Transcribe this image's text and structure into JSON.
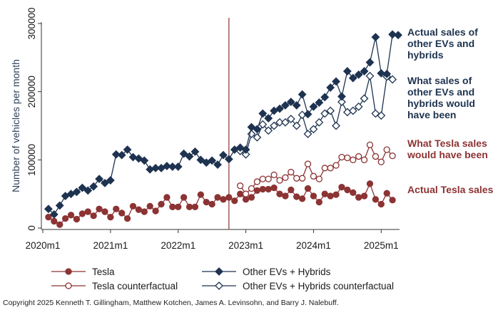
{
  "chart_data": {
    "type": "line",
    "ylabel": "Number of vehicles per month",
    "xlabel": "",
    "ylim": [
      0,
      300000
    ],
    "yticks": [
      0,
      100000,
      200000,
      300000
    ],
    "xticks": [
      "2020m1",
      "2021m1",
      "2022m1",
      "2023m1",
      "2024m1",
      "2025m1"
    ],
    "xrange_months": [
      "2020m1",
      "2025m4"
    ],
    "grid": false,
    "legend_position": "bottom",
    "vertical_line": "2022m10",
    "x": [
      "2020m2",
      "2020m3",
      "2020m4",
      "2020m5",
      "2020m6",
      "2020m7",
      "2020m8",
      "2020m9",
      "2020m10",
      "2020m11",
      "2020m12",
      "2021m1",
      "2021m2",
      "2021m3",
      "2021m4",
      "2021m5",
      "2021m6",
      "2021m7",
      "2021m8",
      "2021m9",
      "2021m10",
      "2021m11",
      "2021m12",
      "2022m1",
      "2022m2",
      "2022m3",
      "2022m4",
      "2022m5",
      "2022m6",
      "2022m7",
      "2022m8",
      "2022m9",
      "2022m10",
      "2022m11",
      "2022m12",
      "2023m1",
      "2023m2",
      "2023m3",
      "2023m4",
      "2023m5",
      "2023m6",
      "2023m7",
      "2023m8",
      "2023m9",
      "2023m10",
      "2023m11",
      "2023m12",
      "2024m1",
      "2024m2",
      "2024m3",
      "2024m4",
      "2024m5",
      "2024m6",
      "2024m7",
      "2024m8",
      "2024m9",
      "2024m10",
      "2024m11",
      "2024m12",
      "2025m1",
      "2025m2",
      "2025m3",
      "2025m4"
    ],
    "series": [
      {
        "name": "Tesla",
        "color": "#8c3333",
        "marker": "filled-circle",
        "values": [
          16000,
          10000,
          5000,
          14000,
          19000,
          13000,
          21000,
          24000,
          18000,
          28000,
          24000,
          16000,
          28000,
          22000,
          14000,
          32000,
          27000,
          24000,
          32000,
          25000,
          35000,
          45000,
          31000,
          31000,
          45000,
          31000,
          31000,
          49000,
          38000,
          35000,
          45000,
          42000,
          45000,
          40000,
          50000,
          42000,
          45000,
          55000,
          57000,
          57000,
          59000,
          50000,
          47000,
          56000,
          46000,
          43000,
          58000,
          47000,
          38000,
          50000,
          47000,
          49000,
          60000,
          56000,
          52000,
          45000,
          47000,
          65000,
          42000,
          35000,
          51000,
          41000,
          null
        ]
      },
      {
        "name": "Tesla counterfactual",
        "color": "#8c3333",
        "marker": "hollow-circle",
        "values": [
          null,
          null,
          null,
          null,
          null,
          null,
          null,
          null,
          null,
          null,
          null,
          null,
          null,
          null,
          null,
          null,
          null,
          null,
          null,
          null,
          null,
          null,
          null,
          null,
          null,
          null,
          null,
          null,
          null,
          null,
          null,
          null,
          null,
          null,
          62000,
          50000,
          58000,
          68000,
          72000,
          72000,
          78000,
          70000,
          74000,
          82000,
          73000,
          73000,
          94000,
          76000,
          72000,
          88000,
          88000,
          92000,
          104000,
          103000,
          100000,
          105000,
          100000,
          122000,
          105000,
          97000,
          115000,
          106000,
          null
        ]
      },
      {
        "name": "Other EVs + Hybrids",
        "color": "#1e3350",
        "marker": "filled-diamond",
        "values": [
          28000,
          20000,
          33000,
          47000,
          50000,
          53000,
          59000,
          55000,
          61000,
          72000,
          66000,
          70000,
          108000,
          107000,
          115000,
          104000,
          102000,
          99000,
          86000,
          88000,
          88000,
          91000,
          90000,
          90000,
          109000,
          105000,
          112000,
          100000,
          96000,
          99000,
          93000,
          107000,
          101000,
          115000,
          118000,
          115000,
          148000,
          145000,
          168000,
          161000,
          172000,
          175000,
          180000,
          185000,
          180000,
          196000,
          167000,
          178000,
          184000,
          192000,
          206000,
          215000,
          193000,
          230000,
          220000,
          225000,
          230000,
          243000,
          280000,
          227000,
          226000,
          284000,
          283000
        ]
      },
      {
        "name": "Other EVs + Hybrids counterfactual",
        "color": "#1e3350",
        "marker": "hollow-diamond",
        "values": [
          null,
          null,
          null,
          null,
          null,
          null,
          null,
          null,
          null,
          null,
          null,
          null,
          null,
          null,
          null,
          null,
          null,
          null,
          null,
          null,
          null,
          null,
          null,
          null,
          null,
          null,
          null,
          null,
          null,
          null,
          null,
          null,
          null,
          null,
          113000,
          108000,
          138000,
          133000,
          152000,
          143000,
          150000,
          155000,
          155000,
          160000,
          150000,
          166000,
          138000,
          145000,
          155000,
          168000,
          172000,
          150000,
          185000,
          170000,
          172000,
          178000,
          190000,
          223000,
          168000,
          165000,
          222000,
          218000,
          null
        ]
      }
    ]
  },
  "annotations": [
    {
      "text": [
        "Actual sales of",
        "other EVs and",
        "hybrids"
      ],
      "color": "#1e3350"
    },
    {
      "text": [
        "What sales of",
        "other EVs and",
        "hybrids would",
        "have been"
      ],
      "color": "#1e3350"
    },
    {
      "text": [
        "What Tesla sales",
        "would have been"
      ],
      "color": "#8c3333"
    },
    {
      "text": [
        "Actual Tesla sales"
      ],
      "color": "#8c3333"
    }
  ],
  "copyright": "Copyright 2025 Kenneth T. Gillingham, Matthew Kotchen, James A. Levinsohn, and Barry J. Nalebuff."
}
